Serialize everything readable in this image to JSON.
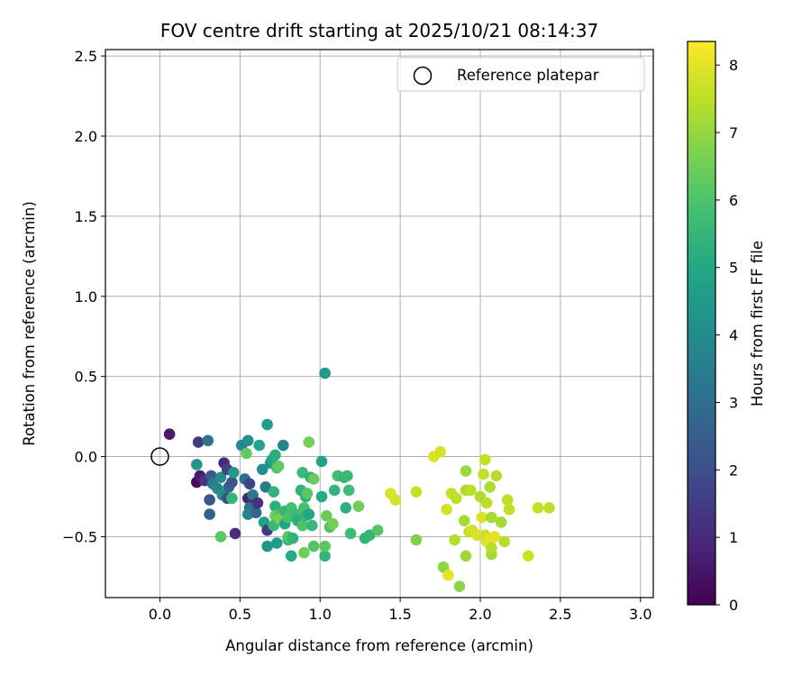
{
  "chart_data": {
    "type": "scatter",
    "title": "FOV centre drift starting at 2025/10/21 08:14:37",
    "xlabel": "Angular distance from reference (arcmin)",
    "ylabel": "Rotation from reference (arcmin)",
    "xlim": [
      -0.34,
      3.08
    ],
    "ylim": [
      -0.88,
      2.54
    ],
    "xticks": [
      "0.0",
      "0.5",
      "1.0",
      "1.5",
      "2.0",
      "2.5",
      "3.0"
    ],
    "xtick_values": [
      0.0,
      0.5,
      1.0,
      1.5,
      2.0,
      2.5,
      3.0
    ],
    "yticks": [
      "−0.5",
      "0.0",
      "0.5",
      "1.0",
      "1.5",
      "2.0",
      "2.5"
    ],
    "ytick_values": [
      -0.5,
      0.0,
      0.5,
      1.0,
      1.5,
      2.0,
      2.5
    ],
    "grid": true,
    "legend": {
      "label": "Reference platepar",
      "placement": "top-right",
      "marker": "open-circle"
    },
    "reference_point": {
      "x": 0.0,
      "y": 0.0
    },
    "colorbar": {
      "label": "Hours from first FF file",
      "range": [
        0,
        8.35
      ],
      "ticks": [
        "0",
        "1",
        "2",
        "3",
        "4",
        "5",
        "6",
        "7",
        "8"
      ],
      "tick_values": [
        0,
        1,
        2,
        3,
        4,
        5,
        6,
        7,
        8
      ],
      "colormap": "viridis"
    },
    "points": [
      [
        0.06,
        0.14,
        0.6
      ],
      [
        0.24,
        0.09,
        1.5
      ],
      [
        0.3,
        0.1,
        3.2
      ],
      [
        0.23,
        -0.16,
        0.2
      ],
      [
        0.25,
        -0.12,
        0.7
      ],
      [
        0.28,
        -0.15,
        1.3
      ],
      [
        0.32,
        -0.12,
        2.4
      ],
      [
        0.31,
        -0.27,
        2.2
      ],
      [
        0.31,
        -0.36,
        2.5
      ],
      [
        0.33,
        -0.17,
        3.5
      ],
      [
        0.36,
        -0.2,
        3.8
      ],
      [
        0.38,
        -0.13,
        4.0
      ],
      [
        0.39,
        -0.24,
        4.2
      ],
      [
        0.4,
        -0.04,
        1.0
      ],
      [
        0.42,
        -0.08,
        1.6
      ],
      [
        0.42,
        -0.26,
        1.9
      ],
      [
        0.43,
        -0.19,
        2.6
      ],
      [
        0.45,
        -0.16,
        2.1
      ],
      [
        0.46,
        -0.1,
        4.5
      ],
      [
        0.45,
        -0.26,
        5.5
      ],
      [
        0.47,
        -0.48,
        1.1
      ],
      [
        0.38,
        -0.5,
        6.2
      ],
      [
        0.23,
        -0.05,
        4.3
      ],
      [
        0.51,
        0.07,
        3.9
      ],
      [
        0.55,
        0.1,
        4.1
      ],
      [
        0.54,
        0.02,
        6.3
      ],
      [
        0.53,
        -0.14,
        3.0
      ],
      [
        0.56,
        -0.17,
        1.7
      ],
      [
        0.55,
        -0.26,
        0.9
      ],
      [
        0.58,
        -0.24,
        3.3
      ],
      [
        0.56,
        -0.32,
        3.2
      ],
      [
        0.55,
        -0.36,
        3.7
      ],
      [
        0.6,
        -0.35,
        2.8
      ],
      [
        0.61,
        -0.29,
        1.2
      ],
      [
        0.62,
        0.07,
        4.8
      ],
      [
        0.64,
        -0.08,
        4.2
      ],
      [
        0.66,
        -0.19,
        3.4
      ],
      [
        0.65,
        -0.41,
        4.7
      ],
      [
        0.67,
        -0.46,
        1.4
      ],
      [
        0.67,
        -0.56,
        4.4
      ],
      [
        0.67,
        0.2,
        4.6
      ],
      [
        0.69,
        -0.04,
        4.4
      ],
      [
        0.7,
        -0.02,
        4.9
      ],
      [
        0.72,
        0.01,
        5.2
      ],
      [
        0.73,
        -0.07,
        5.8
      ],
      [
        0.74,
        -0.06,
        6.3
      ],
      [
        0.71,
        -0.22,
        5.4
      ],
      [
        0.72,
        -0.31,
        5.3
      ],
      [
        0.72,
        -0.37,
        6.5
      ],
      [
        0.71,
        -0.43,
        5.6
      ],
      [
        0.73,
        -0.54,
        4.5
      ],
      [
        0.75,
        -0.36,
        6.0
      ],
      [
        0.75,
        -0.39,
        6.6
      ],
      [
        0.77,
        0.07,
        3.8
      ],
      [
        0.78,
        -0.34,
        5.5
      ],
      [
        0.78,
        -0.42,
        4.9
      ],
      [
        0.8,
        -0.38,
        5.9
      ],
      [
        0.8,
        -0.52,
        5.6
      ],
      [
        0.8,
        -0.5,
        6.1
      ],
      [
        0.82,
        -0.62,
        5.1
      ],
      [
        0.83,
        -0.51,
        5.4
      ],
      [
        0.82,
        -0.32,
        5.8
      ],
      [
        0.85,
        -0.36,
        5.7
      ],
      [
        0.86,
        -0.4,
        5.2
      ],
      [
        0.88,
        -0.21,
        5.4
      ],
      [
        0.89,
        -0.1,
        5.6
      ],
      [
        0.89,
        -0.43,
        6.0
      ],
      [
        0.9,
        -0.32,
        5.9
      ],
      [
        0.91,
        -0.25,
        5.3
      ],
      [
        0.9,
        -0.6,
        6.5
      ],
      [
        0.91,
        -0.37,
        5.5
      ],
      [
        0.92,
        -0.23,
        6.2
      ],
      [
        0.93,
        0.09,
        6.6
      ],
      [
        0.93,
        -0.36,
        5.0
      ],
      [
        0.94,
        -0.13,
        5.3
      ],
      [
        0.95,
        -0.43,
        5.6
      ],
      [
        0.96,
        -0.56,
        6.1
      ],
      [
        0.96,
        -0.14,
        6.4
      ],
      [
        1.01,
        -0.25,
        5.1
      ],
      [
        1.01,
        -0.03,
        4.8
      ],
      [
        1.03,
        0.52,
        4.5
      ],
      [
        1.03,
        -0.62,
        5.4
      ],
      [
        1.03,
        -0.56,
        6.2
      ],
      [
        1.04,
        -0.37,
        6.4
      ],
      [
        1.06,
        -0.44,
        6.1
      ],
      [
        1.08,
        -0.42,
        6.6
      ],
      [
        1.09,
        -0.21,
        5.4
      ],
      [
        1.11,
        -0.12,
        5.8
      ],
      [
        1.15,
        -0.13,
        5.5
      ],
      [
        1.16,
        -0.32,
        5.3
      ],
      [
        1.17,
        -0.12,
        5.6
      ],
      [
        1.18,
        -0.21,
        5.7
      ],
      [
        1.19,
        -0.48,
        5.7
      ],
      [
        1.24,
        -0.31,
        6.5
      ],
      [
        1.28,
        -0.51,
        5.4
      ],
      [
        1.31,
        -0.49,
        5.5
      ],
      [
        1.36,
        -0.46,
        6.1
      ],
      [
        1.44,
        -0.23,
        7.9
      ],
      [
        1.47,
        -0.27,
        7.8
      ],
      [
        1.6,
        -0.22,
        7.6
      ],
      [
        1.6,
        -0.52,
        6.7
      ],
      [
        1.71,
        0.0,
        7.9
      ],
      [
        1.75,
        0.03,
        7.8
      ],
      [
        1.77,
        -0.69,
        6.9
      ],
      [
        1.79,
        -0.33,
        7.8
      ],
      [
        1.8,
        -0.74,
        8.0
      ],
      [
        1.82,
        -0.23,
        7.6
      ],
      [
        1.85,
        -0.26,
        7.5
      ],
      [
        1.84,
        -0.52,
        7.4
      ],
      [
        1.87,
        -0.81,
        6.9
      ],
      [
        1.9,
        -0.4,
        7.2
      ],
      [
        1.91,
        -0.62,
        7.1
      ],
      [
        1.91,
        -0.09,
        7.1
      ],
      [
        1.91,
        -0.21,
        7.3
      ],
      [
        1.93,
        -0.47,
        7.6
      ],
      [
        1.94,
        -0.21,
        7.5
      ],
      [
        1.95,
        -0.46,
        7.8
      ],
      [
        1.98,
        -0.49,
        7.9
      ],
      [
        2.0,
        -0.25,
        7.3
      ],
      [
        2.01,
        -0.38,
        7.9
      ],
      [
        2.02,
        -0.11,
        7.6
      ],
      [
        2.03,
        -0.49,
        7.7
      ],
      [
        2.03,
        -0.02,
        7.6
      ],
      [
        2.04,
        -0.29,
        7.5
      ],
      [
        2.04,
        -0.53,
        7.8
      ],
      [
        2.06,
        -0.51,
        8.0
      ],
      [
        2.06,
        -0.55,
        8.1
      ],
      [
        2.06,
        -0.19,
        7.3
      ],
      [
        2.07,
        -0.38,
        7.2
      ],
      [
        2.07,
        -0.61,
        7.2
      ],
      [
        2.07,
        -0.57,
        7.4
      ],
      [
        2.09,
        -0.5,
        8.0
      ],
      [
        2.1,
        -0.12,
        7.4
      ],
      [
        2.13,
        -0.41,
        7.2
      ],
      [
        2.15,
        -0.53,
        7.4
      ],
      [
        2.17,
        -0.27,
        7.5
      ],
      [
        2.18,
        -0.33,
        7.6
      ],
      [
        2.3,
        -0.62,
        7.7
      ],
      [
        2.36,
        -0.32,
        7.6
      ],
      [
        2.43,
        -0.32,
        7.5
      ]
    ]
  }
}
